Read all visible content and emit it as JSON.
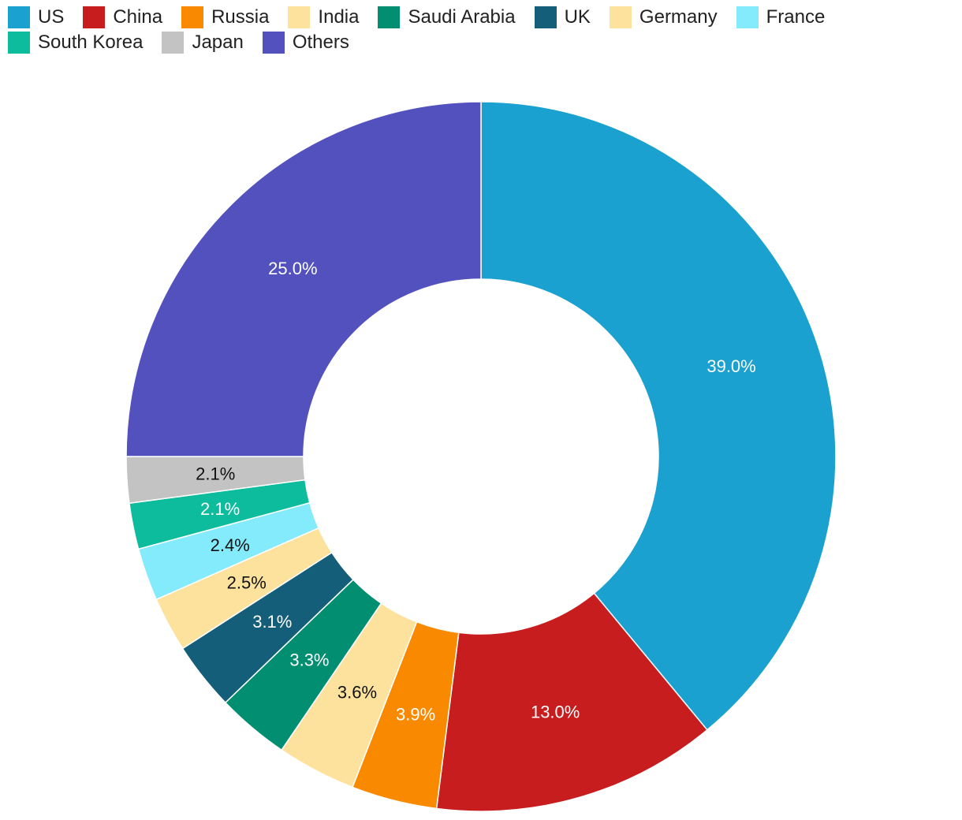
{
  "chart_data": {
    "type": "pie",
    "variant": "donut",
    "legend_position": "top-left",
    "start": "top",
    "direction": "clockwise",
    "slices": [
      {
        "label": "US",
        "value": 39.0,
        "display": "39.0%",
        "color": "#1ba1cf",
        "label_color": "#ffffff"
      },
      {
        "label": "China",
        "value": 13.0,
        "display": "13.0%",
        "color": "#c81d1e",
        "label_color": "#ffffff"
      },
      {
        "label": "Russia",
        "value": 3.9,
        "display": "3.9%",
        "color": "#f98a00",
        "label_color": "#ffffff"
      },
      {
        "label": "India",
        "value": 3.6,
        "display": "3.6%",
        "color": "#fce29d",
        "label_color": "#111111"
      },
      {
        "label": "Saudi Arabia",
        "value": 3.3,
        "display": "3.3%",
        "color": "#028e71",
        "label_color": "#ffffff"
      },
      {
        "label": "UK",
        "value": 3.1,
        "display": "3.1%",
        "color": "#155e7a",
        "label_color": "#ffffff"
      },
      {
        "label": "Germany",
        "value": 2.5,
        "display": "2.5%",
        "color": "#fce29d",
        "label_color": "#111111"
      },
      {
        "label": "France",
        "value": 2.4,
        "display": "2.4%",
        "color": "#84ebfc",
        "label_color": "#111111"
      },
      {
        "label": "South Korea",
        "value": 2.1,
        "display": "2.1%",
        "color": "#0dbb9d",
        "label_color": "#ffffff"
      },
      {
        "label": "Japan",
        "value": 2.1,
        "display": "2.1%",
        "color": "#c3c3c3",
        "label_color": "#111111"
      },
      {
        "label": "Others",
        "value": 25.0,
        "display": "25.0%",
        "color": "#5351be",
        "label_color": "#ffffff"
      }
    ]
  }
}
